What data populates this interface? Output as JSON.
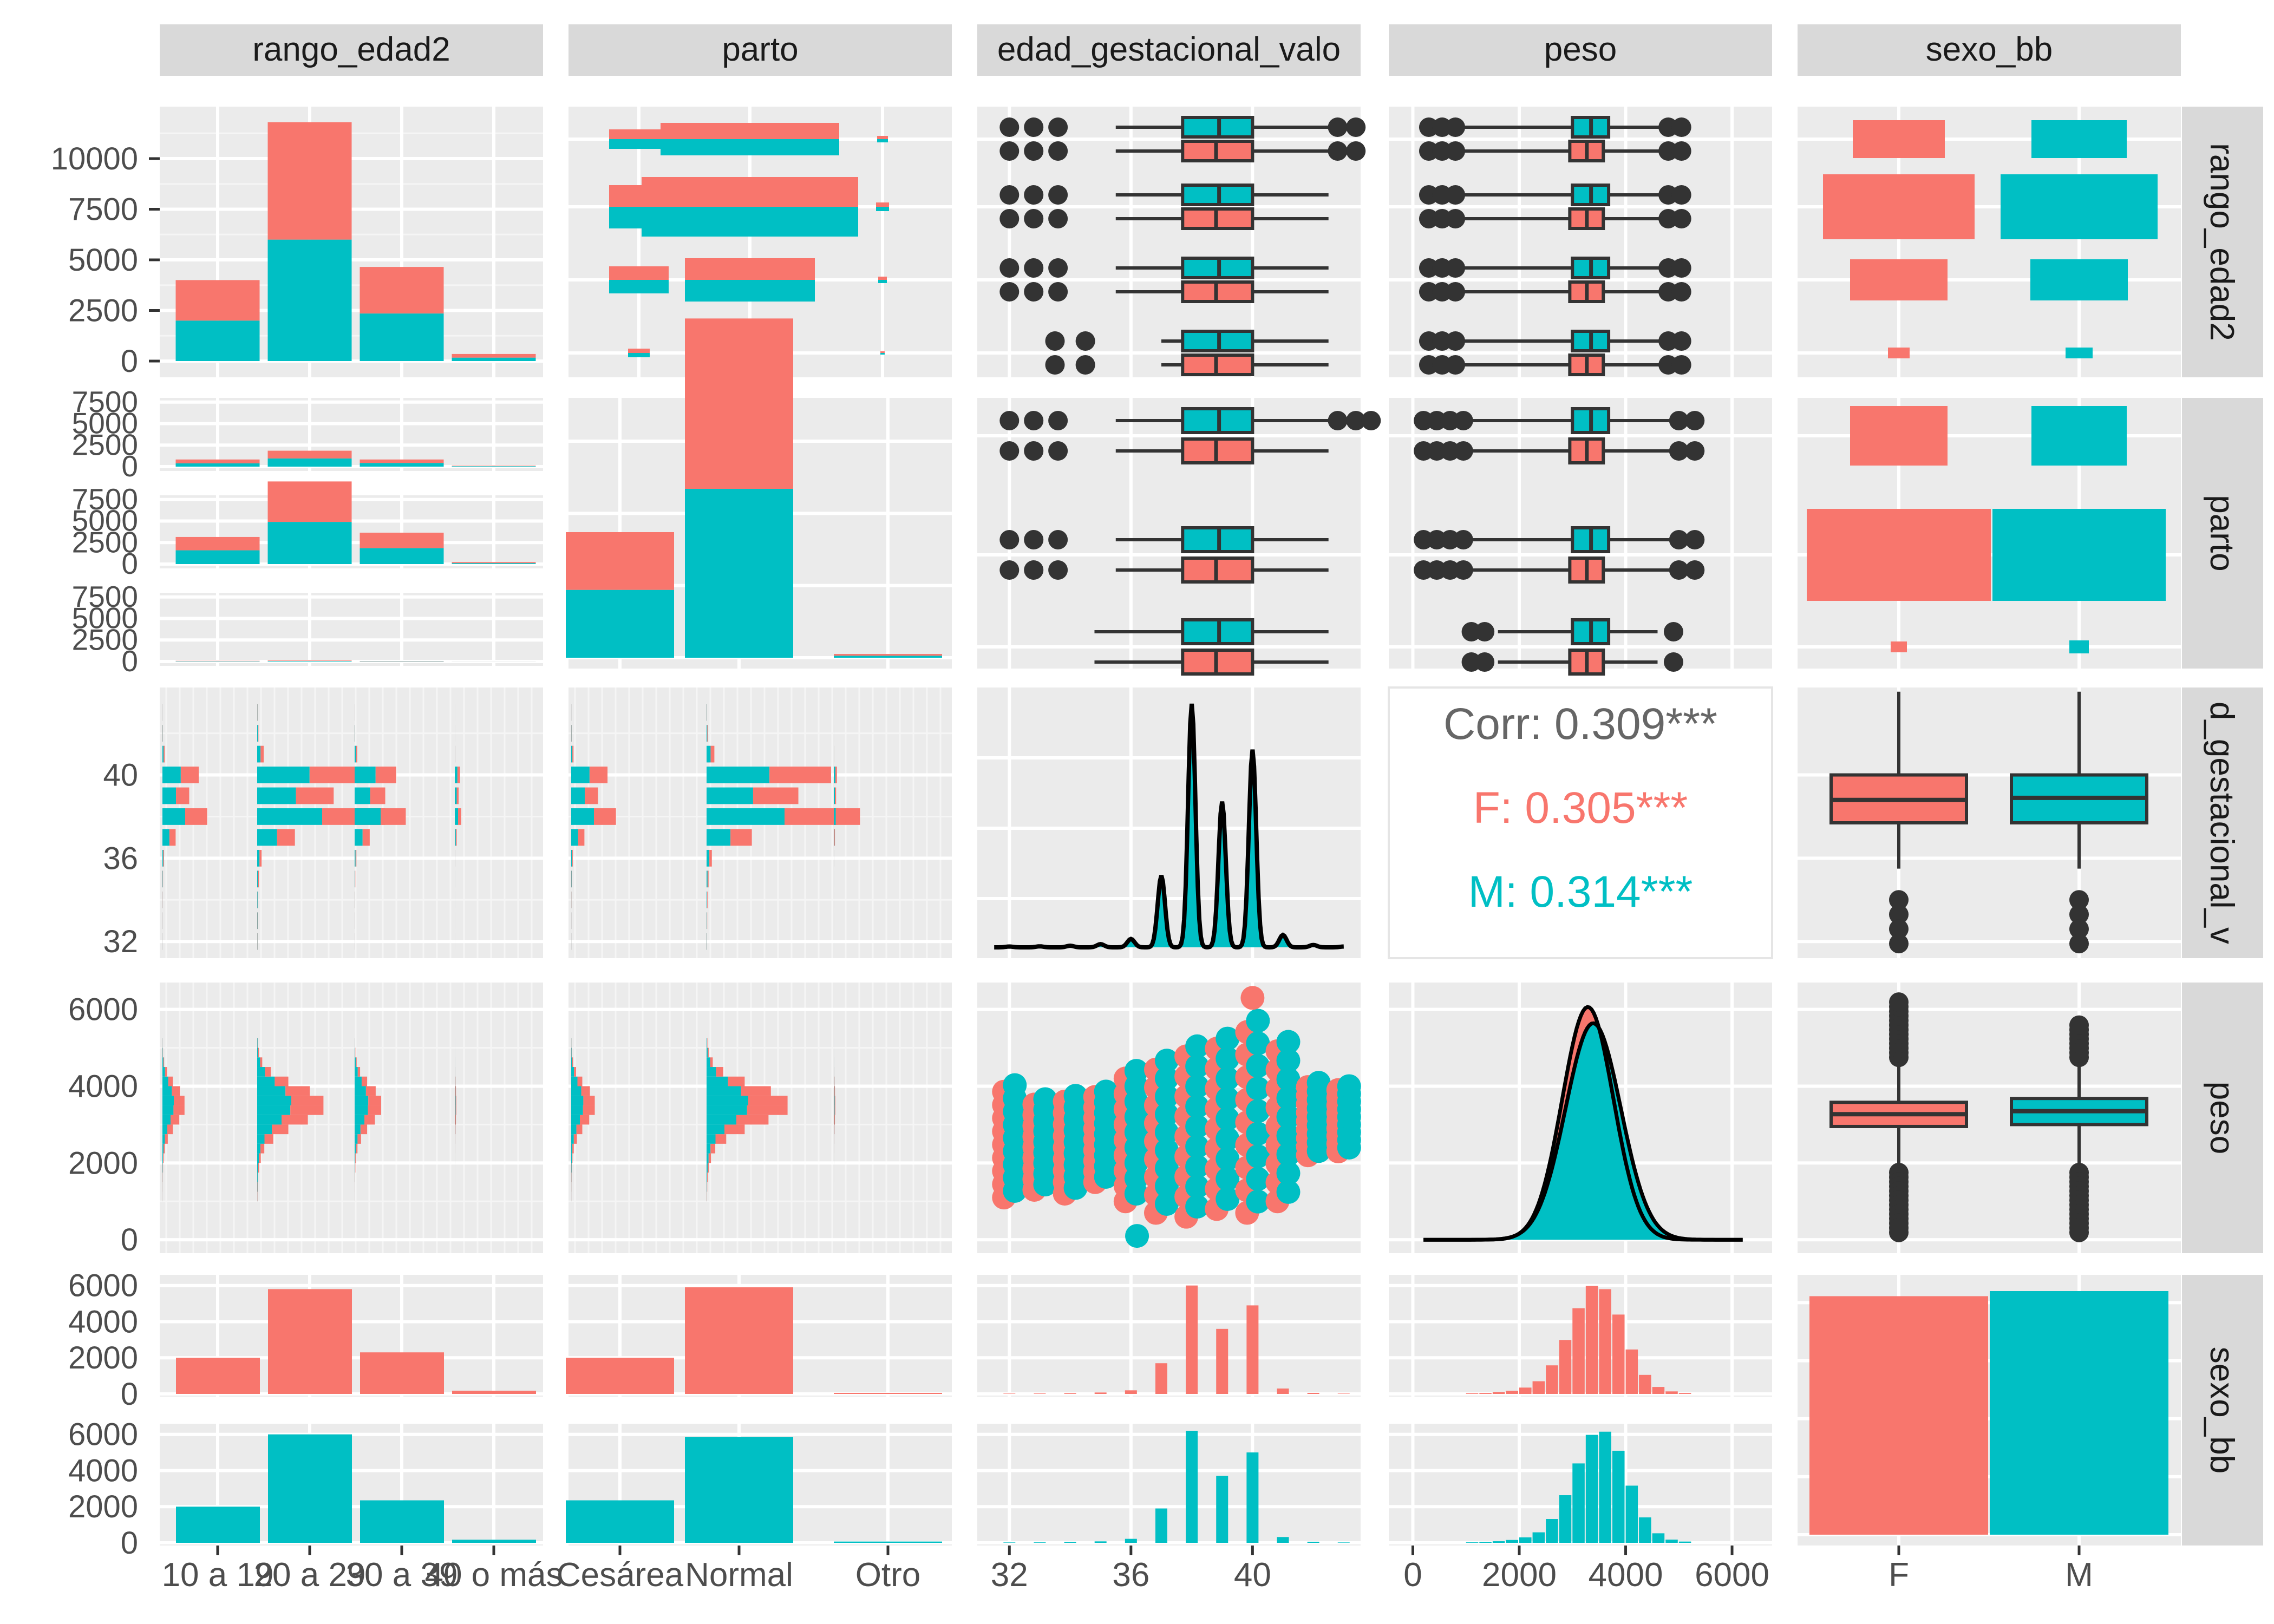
{
  "chart_data": {
    "type": "pairs-matrix",
    "variables": [
      "rango_edad2",
      "parto",
      "edad_gestacional_valor",
      "peso",
      "sexo_bb"
    ],
    "strip_labels": {
      "top": [
        "rango_edad2",
        "parto",
        "edad_gestacional_valo",
        "peso",
        "sexo_bb"
      ],
      "right": [
        "rango_edad2",
        "parto",
        "d_gestacional_v",
        "peso",
        "sexo_bb"
      ]
    },
    "colors": {
      "F": "#F8766D",
      "M": "#00BFC4",
      "panel_bg": "#EBEBEB",
      "strip_bg": "#D9D9D9",
      "text": "#4D4D4D"
    },
    "groups": [
      "F",
      "M"
    ],
    "categories": {
      "rango_edad2": [
        "10 a 19",
        "20 a 29",
        "30 a 39",
        "40 o más"
      ],
      "parto": [
        "Cesárea",
        "Normal",
        "Otro"
      ],
      "sexo_bb": [
        "F",
        "M"
      ]
    },
    "x_axis_ticks": {
      "rango_edad2": [
        "10 a 19",
        "20 a 29",
        "30 a 39",
        "40 o más"
      ],
      "parto": [
        "Cesárea",
        "Normal",
        "Otro"
      ],
      "edad_gestacional_valor": [
        "32",
        "36",
        "40"
      ],
      "peso": [
        "0",
        "2000",
        "4000",
        "6000"
      ],
      "sexo_bb": [
        "F",
        "M"
      ]
    },
    "y_axis_ticks": {
      "rango_edad2": [
        "0",
        "2500",
        "5000",
        "7500",
        "10000"
      ],
      "parto_facet": [
        "0",
        "2500",
        "5000",
        "7500"
      ],
      "edad_gestacional_valor": [
        "32",
        "36",
        "40"
      ],
      "peso": [
        "0",
        "2000",
        "4000",
        "6000"
      ],
      "sexo_bb_facet": [
        "0",
        "2000",
        "4000",
        "6000"
      ]
    },
    "rango_edad2_counts": {
      "F": [
        2000,
        5800,
        2300,
        180
      ],
      "M": [
        2000,
        6000,
        2350,
        170
      ]
    },
    "parto_counts": {
      "F": [
        2000,
        5900,
        60
      ],
      "M": [
        2350,
        5850,
        70
      ]
    },
    "rango_by_parto": {
      "Cesárea": [
        {
          "F": 450,
          "M": 380
        },
        {
          "F": 900,
          "M": 950
        },
        {
          "F": 400,
          "M": 430
        },
        {
          "F": 60,
          "M": 55
        }
      ],
      "Normal": [
        {
          "F": 1550,
          "M": 1600
        },
        {
          "F": 4700,
          "M": 4900
        },
        {
          "F": 1800,
          "M": 1850
        },
        {
          "F": 120,
          "M": 110
        }
      ],
      "Otro": [
        {
          "F": 40,
          "M": 40
        },
        {
          "F": 60,
          "M": 60
        },
        {
          "F": 30,
          "M": 30
        },
        {
          "F": 5,
          "M": 5
        }
      ]
    },
    "gestational_weeks": [
      32,
      33,
      34,
      35,
      36,
      37,
      38,
      39,
      40,
      41,
      42,
      43
    ],
    "gestational_hist": {
      "F": [
        20,
        25,
        40,
        80,
        200,
        1700,
        6000,
        3600,
        4900,
        300,
        60,
        20
      ],
      "M": [
        20,
        25,
        40,
        80,
        220,
        1900,
        6200,
        3700,
        5000,
        320,
        60,
        20
      ]
    },
    "peso_hist": {
      "bin_starts": [
        1000,
        1250,
        1500,
        1750,
        2000,
        2250,
        2500,
        2750,
        3000,
        3250,
        3500,
        3750,
        4000,
        4250,
        4500,
        4750,
        5000
      ],
      "F": [
        20,
        30,
        60,
        100,
        200,
        400,
        900,
        1700,
        2700,
        3400,
        3300,
        2500,
        1400,
        600,
        220,
        80,
        30
      ],
      "M": [
        15,
        25,
        50,
        90,
        170,
        330,
        750,
        1500,
        2500,
        3400,
        3500,
        2900,
        1800,
        800,
        300,
        100,
        40
      ]
    },
    "peso_box": {
      "F": {
        "q1": 2950,
        "median": 3270,
        "q3": 3580
      },
      "M": {
        "q1": 3000,
        "median": 3350,
        "q3": 3680
      }
    },
    "gest_box": {
      "F": {
        "q1": 37.7,
        "median": 38.8,
        "q3": 40.0
      },
      "M": {
        "q1": 37.7,
        "median": 38.9,
        "q3": 40.0
      }
    },
    "correlation": {
      "overall": "Corr: 0.309***",
      "F": "F: 0.305***",
      "M": "M: 0.314***"
    }
  }
}
